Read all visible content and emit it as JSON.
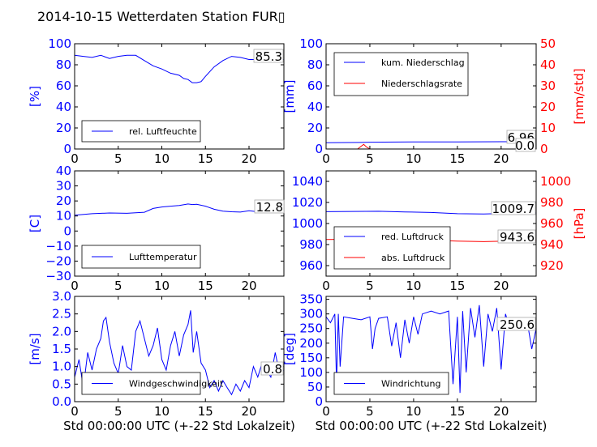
{
  "title": "2014-10-15 Wetterdaten Station FUR▯",
  "colors": {
    "primary": "#0000ff",
    "secondary": "#ff0000",
    "axis": "#000000"
  },
  "chart_data": [
    {
      "id": "humidity",
      "type": "line",
      "xlim": [
        0,
        24
      ],
      "ylim": [
        0,
        100
      ],
      "x_ticks": [
        "0",
        "5",
        "10",
        "15",
        "20"
      ],
      "y_ticks": [
        "0",
        "20",
        "40",
        "60",
        "80",
        "100"
      ],
      "ylabel": "[%]",
      "xlabel": "",
      "legend_placement": "lower-center",
      "series": [
        {
          "name": "rel. Luftfeuchte",
          "color": "#0000ff",
          "x": [
            0,
            1,
            2,
            3,
            4,
            5,
            6,
            7,
            8,
            9,
            10,
            11,
            12,
            12.5,
            13,
            13.5,
            14,
            14.5,
            15,
            16,
            17,
            18,
            19,
            20,
            21,
            22,
            23,
            24
          ],
          "y": [
            89,
            88,
            87,
            89,
            86,
            88,
            89,
            89,
            84,
            79,
            76,
            72,
            70,
            67,
            66,
            63,
            63,
            64,
            69,
            78,
            84,
            88,
            87,
            85,
            85,
            85,
            85,
            85
          ]
        }
      ],
      "value_label": "85.3"
    },
    {
      "id": "precipitation",
      "type": "line",
      "xlim": [
        0,
        24
      ],
      "ylim": [
        0,
        100
      ],
      "y2lim": [
        0,
        50
      ],
      "x_ticks": [
        "0",
        "5",
        "10",
        "15",
        "20"
      ],
      "y_ticks": [
        "0",
        "20",
        "40",
        "60",
        "80",
        "100"
      ],
      "y2_ticks": [
        "0",
        "10",
        "20",
        "30",
        "40",
        "50"
      ],
      "ylabel": "[mm]",
      "y2label": "[mm/std]",
      "xlabel": "",
      "legend_placement": "upper-left",
      "series": [
        {
          "name": "kum. Niederschlag",
          "color": "#0000ff",
          "axis": "left",
          "x": [
            0,
            4,
            5,
            10,
            15,
            20,
            24
          ],
          "y": [
            5.9,
            6.2,
            6.5,
            6.7,
            6.8,
            6.9,
            6.96
          ]
        },
        {
          "name": "Niederschlagsrate",
          "color": "#ff0000",
          "axis": "right",
          "x": [
            0,
            3.6,
            4.0,
            4.3,
            4.6,
            5.0,
            24
          ],
          "y": [
            0,
            0,
            1.3,
            2.2,
            1.0,
            0,
            0
          ]
        }
      ],
      "value_labels": [
        "6.96",
        "0.0"
      ]
    },
    {
      "id": "temperature",
      "type": "line",
      "xlim": [
        0,
        24
      ],
      "ylim": [
        -30,
        40
      ],
      "x_ticks": [
        "0",
        "5",
        "10",
        "15",
        "20"
      ],
      "y_ticks": [
        "−30",
        "−20",
        "−10",
        "0",
        "10",
        "20",
        "30",
        "40"
      ],
      "ylabel": "[C]",
      "xlabel": "",
      "legend_placement": "lower-center",
      "series": [
        {
          "name": "Lufttemperatur",
          "color": "#0000ff",
          "x": [
            0,
            2,
            4,
            6,
            8,
            9,
            10,
            11,
            12,
            13,
            13.5,
            14,
            15,
            16,
            17,
            18,
            19,
            20,
            21,
            22,
            23,
            24
          ],
          "y": [
            10.5,
            11.5,
            12,
            11.8,
            12.5,
            15,
            16,
            16.5,
            17,
            18,
            17.6,
            17.8,
            16.5,
            14.5,
            13.2,
            12.8,
            12.6,
            13.5,
            12.8,
            13,
            12.8,
            12.8
          ]
        }
      ],
      "value_label": "12.8"
    },
    {
      "id": "pressure",
      "type": "line",
      "xlim": [
        0,
        24
      ],
      "ylim": [
        950,
        1050
      ],
      "y2lim": [
        910,
        1010
      ],
      "x_ticks": [
        "0",
        "5",
        "10",
        "15",
        "20"
      ],
      "y_ticks": [
        "960",
        "980",
        "1000",
        "1020",
        "1040"
      ],
      "y2_ticks": [
        "920",
        "940",
        "960",
        "980",
        "1000"
      ],
      "ylabel": "",
      "y2label": "[hPa]",
      "xlabel": "",
      "legend_placement": "lower-left",
      "series": [
        {
          "name": "red. Luftdruck",
          "color": "#0000ff",
          "axis": "left",
          "x": [
            0,
            3,
            6,
            9,
            12,
            15,
            18,
            21,
            24
          ],
          "y": [
            1011.2,
            1011.5,
            1011.6,
            1011.0,
            1010.5,
            1009.3,
            1009.0,
            1009.7,
            1010.0
          ]
        },
        {
          "name": "abs. Luftdruck",
          "color": "#ff0000",
          "axis": "right",
          "x": [
            0,
            3,
            6,
            9,
            12,
            15,
            18,
            21,
            24
          ],
          "y": [
            944.8,
            945.0,
            945.1,
            944.6,
            944.2,
            943.2,
            942.8,
            943.4,
            943.6
          ]
        }
      ],
      "value_labels": [
        "1009.7",
        "943.6"
      ]
    },
    {
      "id": "wind-speed",
      "type": "line",
      "xlim": [
        0,
        24
      ],
      "ylim": [
        0,
        3
      ],
      "x_ticks": [
        "0",
        "5",
        "10",
        "15",
        "20"
      ],
      "y_ticks": [
        "0.0",
        "0.5",
        "1.0",
        "1.5",
        "2.0",
        "2.5",
        "3.0"
      ],
      "ylabel": "[m/s]",
      "xlabel": "Std 00:00:00 UTC (+-22 Std Lokalzeit)",
      "legend_placement": "lower-center",
      "series": [
        {
          "name": "Windgeschwindigkeit",
          "color": "#0000ff",
          "x": [
            0,
            0.5,
            1,
            1.5,
            2,
            2.5,
            3,
            3.3,
            3.6,
            4,
            4.5,
            5,
            5.5,
            6,
            6.5,
            7,
            7.5,
            8,
            8.5,
            9,
            9.5,
            10,
            10.5,
            11,
            11.5,
            12,
            12.5,
            13,
            13.3,
            13.6,
            14,
            14.5,
            15,
            15.5,
            16,
            16.5,
            17,
            17.5,
            18,
            18.5,
            19,
            19.5,
            20,
            20.5,
            21,
            21.5,
            22,
            22.5,
            23,
            23.5,
            24
          ],
          "y": [
            0.7,
            1.2,
            0.4,
            1.4,
            0.9,
            1.5,
            1.8,
            2.3,
            2.4,
            1.7,
            1.1,
            0.8,
            1.6,
            1.0,
            0.9,
            2.0,
            2.3,
            1.8,
            1.3,
            1.6,
            2.1,
            1.2,
            0.9,
            1.6,
            2.0,
            1.3,
            1.9,
            2.2,
            2.6,
            1.4,
            2.0,
            1.1,
            0.9,
            0.4,
            0.6,
            0.3,
            0.6,
            0.4,
            0.2,
            0.5,
            0.3,
            0.6,
            0.4,
            1.0,
            0.7,
            1.1,
            0.9,
            0.7,
            1.4,
            0.8,
            0.9
          ]
        }
      ],
      "value_label": "0.8"
    },
    {
      "id": "wind-direction",
      "type": "line",
      "xlim": [
        0,
        24
      ],
      "ylim": [
        0,
        360
      ],
      "x_ticks": [
        "0",
        "5",
        "10",
        "15",
        "20"
      ],
      "y_ticks": [
        "0",
        "50",
        "100",
        "150",
        "200",
        "250",
        "300",
        "350"
      ],
      "ylabel": "[deg]",
      "xlabel": "Std 00:00:00 UTC (+-22 Std Lokalzeit)",
      "legend_placement": "lower-left",
      "series": [
        {
          "name": "Windrichtung",
          "color": "#0000ff",
          "x": [
            0,
            0.5,
            1,
            1.2,
            1.4,
            1.6,
            2,
            3,
            4,
            5,
            5.3,
            5.6,
            6,
            7,
            7.5,
            8,
            8.5,
            9,
            9.5,
            10,
            10.5,
            11,
            12,
            13,
            14,
            14.5,
            15,
            15.3,
            15.6,
            16,
            16.5,
            17,
            17.5,
            18,
            18.5,
            19,
            19.5,
            20,
            20.5,
            21,
            21.5,
            22,
            22.5,
            23,
            23.5,
            24
          ],
          "y": [
            290,
            270,
            300,
            60,
            300,
            120,
            290,
            285,
            280,
            290,
            180,
            250,
            285,
            290,
            190,
            270,
            150,
            280,
            200,
            290,
            230,
            300,
            310,
            300,
            310,
            60,
            290,
            30,
            310,
            100,
            320,
            220,
            330,
            120,
            300,
            240,
            320,
            110,
            300,
            250,
            280,
            260,
            250,
            270,
            180,
            250
          ]
        }
      ],
      "value_label": "250.6"
    }
  ]
}
